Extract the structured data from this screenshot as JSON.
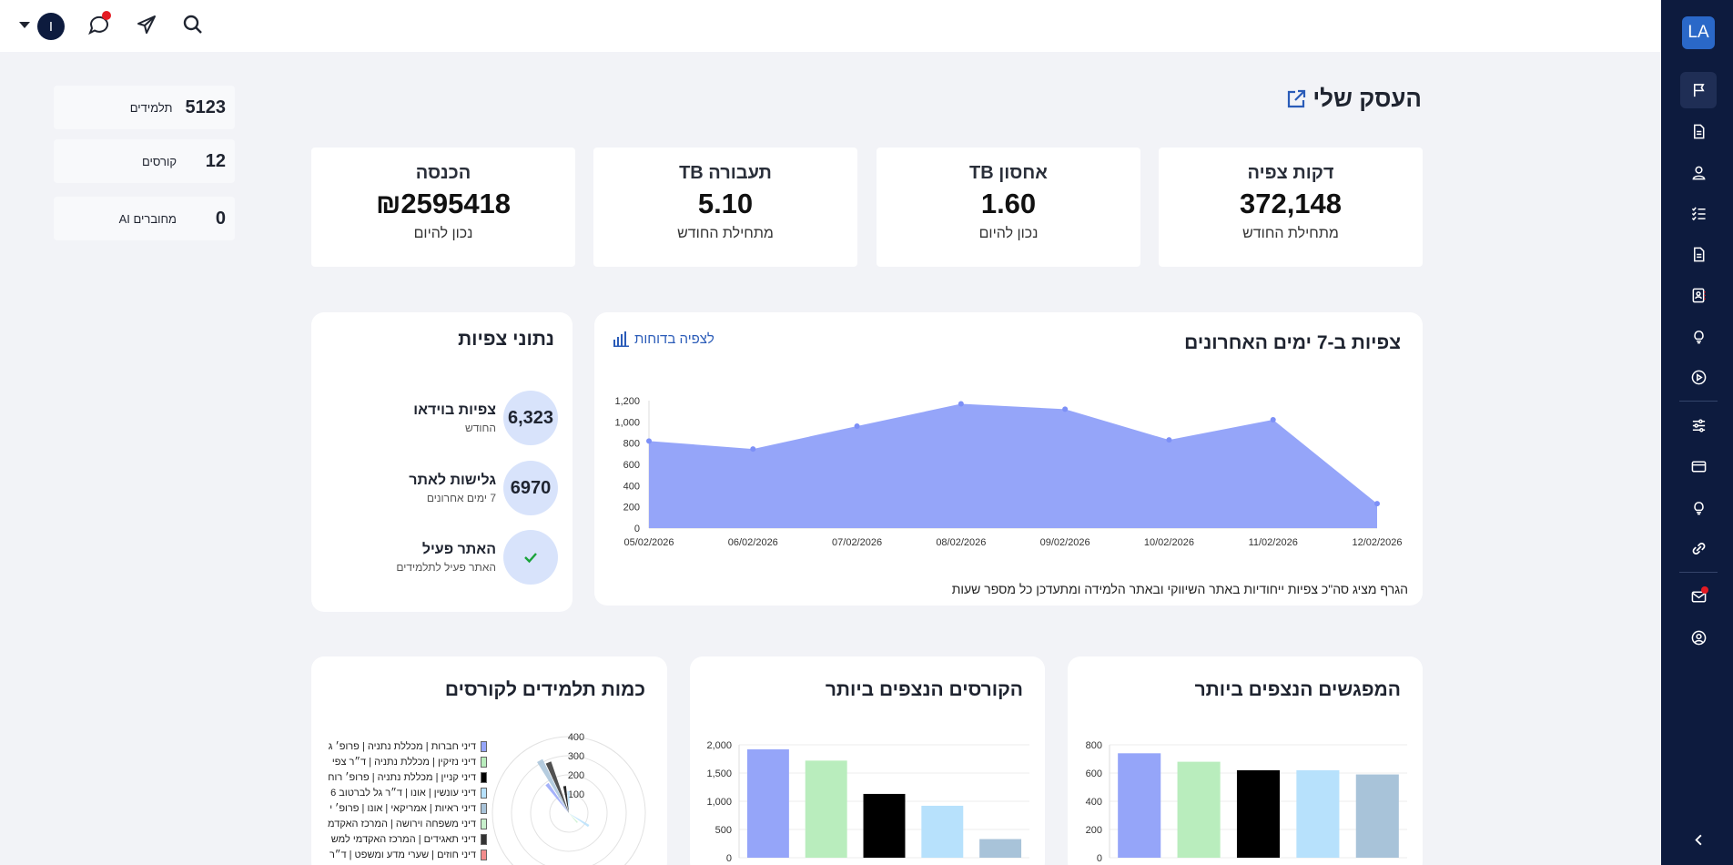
{
  "topbar": {
    "avatar_letter": "I"
  },
  "sidebar": {
    "logo": "LA"
  },
  "counters": [
    {
      "value": "5123",
      "label": "תלמידים"
    },
    {
      "value": "12",
      "label": "קורסים"
    },
    {
      "value": "0",
      "label": "מחוברים AI"
    }
  ],
  "page": {
    "title": "העסק שלי"
  },
  "stats": [
    {
      "title": "דקות צפיה",
      "value": "372,148",
      "sub": "מתחילת החודש"
    },
    {
      "title": "TB אחסון",
      "value": "1.60",
      "sub": "נכון להיום"
    },
    {
      "title": "TB תעבורה",
      "value": "5.10",
      "sub": "מתחילת החודש"
    },
    {
      "title": "הכנסה",
      "value": "₪2595418",
      "sub": "נכון להיום"
    }
  ],
  "views_card": {
    "title": "צפיות ב-7 ימים האחרונים",
    "link": "לצפיה בדוחות",
    "note": "הגרף מציג סה\"כ צפיות ייחודיות באתר השיווקי ובאתר הלמידה ומתעדכן כל מספר שעות"
  },
  "stats_card": {
    "title": "נתוני צפיות",
    "rows": [
      {
        "circle": "6,323",
        "title": "צפיות בוידאו",
        "sub": "החודש"
      },
      {
        "circle": "6970",
        "title": "גלישות לאתר",
        "sub": "7 ימים אחרונים"
      },
      {
        "circle": "",
        "title": "האתר פעיל",
        "sub": "האתר פעיל לתלמידים"
      }
    ]
  },
  "meetings_card": {
    "title": "המפגשים הנצפים ביותר"
  },
  "courses_card": {
    "title": "הקורסים הנצפים ביותר"
  },
  "students_card": {
    "title": "כמות תלמידים לקורסים"
  },
  "chart_data": [
    {
      "type": "area",
      "x": [
        "05/02/2026",
        "06/02/2026",
        "07/02/2026",
        "08/02/2026",
        "09/02/2026",
        "10/02/2026",
        "11/02/2026",
        "12/02/2026"
      ],
      "values": [
        820,
        745,
        960,
        1170,
        1120,
        830,
        1020,
        230
      ],
      "ylim": [
        0,
        1200
      ],
      "yticks": [
        "0",
        "200",
        "400",
        "600",
        "800",
        "1,000",
        "1,200"
      ],
      "color": "#95a5f9"
    },
    {
      "type": "bar",
      "values": [
        740,
        680,
        620,
        620,
        590
      ],
      "ylim": [
        0,
        800
      ],
      "yticks": [
        "0",
        "200",
        "400",
        "600",
        "800"
      ],
      "colors": [
        "#95a5f9",
        "#b9edbd",
        "#000000",
        "#b7e1fc",
        "#a8c3d9"
      ]
    },
    {
      "type": "bar",
      "values": [
        1920,
        1720,
        1130,
        920,
        330
      ],
      "ylim": [
        0,
        2000
      ],
      "yticks": [
        "0",
        "500",
        "1,000",
        "1,500",
        "2,000"
      ],
      "colors": [
        "#95a5f9",
        "#b9edbd",
        "#000000",
        "#b7e1fc",
        "#a8c3d9"
      ]
    },
    {
      "type": "polar",
      "rticks": [
        "100",
        "200",
        "300",
        "400"
      ],
      "legend": [
        {
          "label": "דיני חברות | מכללת נתניה | פרופ׳ ג",
          "color": "#95a5f9"
        },
        {
          "label": "דיני נזיקין | מכללת נתניה | ד״ר צפי",
          "color": "#b9edbd"
        },
        {
          "label": "דיני קניין | מכללת נתניה | פרופ׳ רוח",
          "color": "#000000"
        },
        {
          "label": "דיני עונשין | אונו | ד״ר גל לברטוב 6",
          "color": "#b7e1fc"
        },
        {
          "label": "דיני ראיות | אמריקאי | אונו | פרופ׳ י",
          "color": "#a8c3d9"
        },
        {
          "label": "דיני משפחה וירושה | המרכז האקדמ",
          "color": "#c8f0cc"
        },
        {
          "label": "דיני תאגידים | המרכז האקדמי למש",
          "color": "#333333"
        },
        {
          "label": "דיני חוזים | שערי מדע ומשפט | ד״ר",
          "color": "#f28c8c"
        }
      ]
    }
  ]
}
